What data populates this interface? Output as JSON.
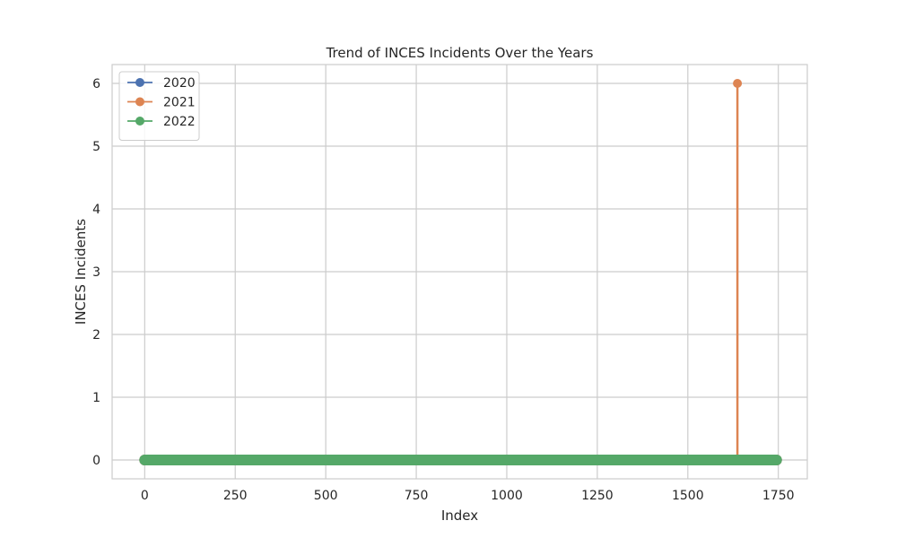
{
  "chart_data": {
    "type": "line",
    "title": "Trend of INCES Incidents Over the Years",
    "xlabel": "Index",
    "ylabel": "INCES Incidents",
    "xlim": [
      -90,
      1830
    ],
    "ylim": [
      -0.3,
      6.3
    ],
    "xticks": [
      0,
      250,
      500,
      750,
      1000,
      1250,
      1500,
      1750
    ],
    "yticks": [
      0,
      1,
      2,
      3,
      4,
      5,
      6
    ],
    "grid": true,
    "legend_position": "upper-left",
    "series": [
      {
        "name": "2020",
        "color": "#4c72b0",
        "x_range": [
          0,
          1745
        ],
        "baseline": 0,
        "spikes": []
      },
      {
        "name": "2021",
        "color": "#dd8452",
        "x_range": [
          0,
          1745
        ],
        "baseline": 0,
        "spikes": [
          {
            "x": 1637,
            "y": 6
          }
        ]
      },
      {
        "name": "2022",
        "color": "#55a868",
        "x_range": [
          0,
          1745
        ],
        "baseline": 0,
        "spikes": []
      }
    ]
  }
}
